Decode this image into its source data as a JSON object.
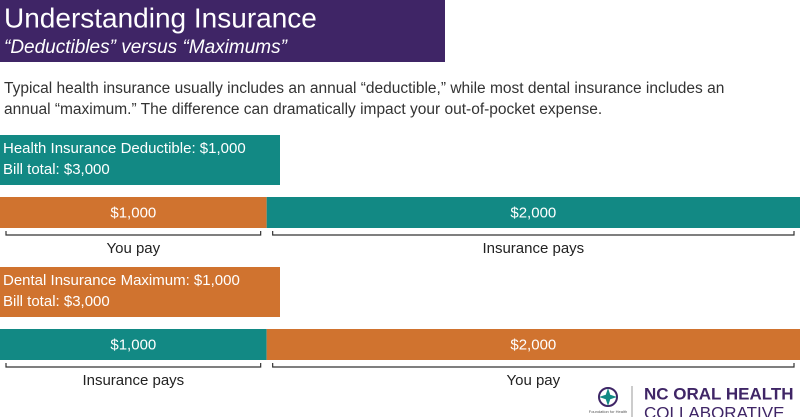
{
  "header": {
    "title": "Understanding Insurance",
    "subtitle": "“Deductibles” versus “Maximums”"
  },
  "intro": [
    "Typical health insurance usually includes an annual “deductible,” while most dental insurance includes an",
    "annual “maximum.” The difference can dramatically impact your out-of-pocket expense."
  ],
  "sections": [
    {
      "heading": "Health Insurance Deductible: $1,000",
      "bill": "Bill total: $3,000",
      "color": "#128984",
      "segments": [
        {
          "value": 1000,
          "label": "$1,000",
          "color": "#d0732f",
          "caption": "You pay"
        },
        {
          "value": 2000,
          "label": "$2,000",
          "color": "#128984",
          "caption": "Insurance pays"
        }
      ]
    },
    {
      "heading": "Dental Insurance Maximum: $1,000",
      "bill": "Bill total: $3,000",
      "color": "#d0732f",
      "segments": [
        {
          "value": 1000,
          "label": "$1,000",
          "color": "#128984",
          "caption": "Insurance pays"
        },
        {
          "value": 2000,
          "label": "$2,000",
          "color": "#d0732f",
          "caption": "You pay"
        }
      ]
    }
  ],
  "logo": {
    "line1": "NC ORAL HEALTH",
    "line2": "COLLABORATIVE",
    "small": "Foundation for Health"
  }
}
